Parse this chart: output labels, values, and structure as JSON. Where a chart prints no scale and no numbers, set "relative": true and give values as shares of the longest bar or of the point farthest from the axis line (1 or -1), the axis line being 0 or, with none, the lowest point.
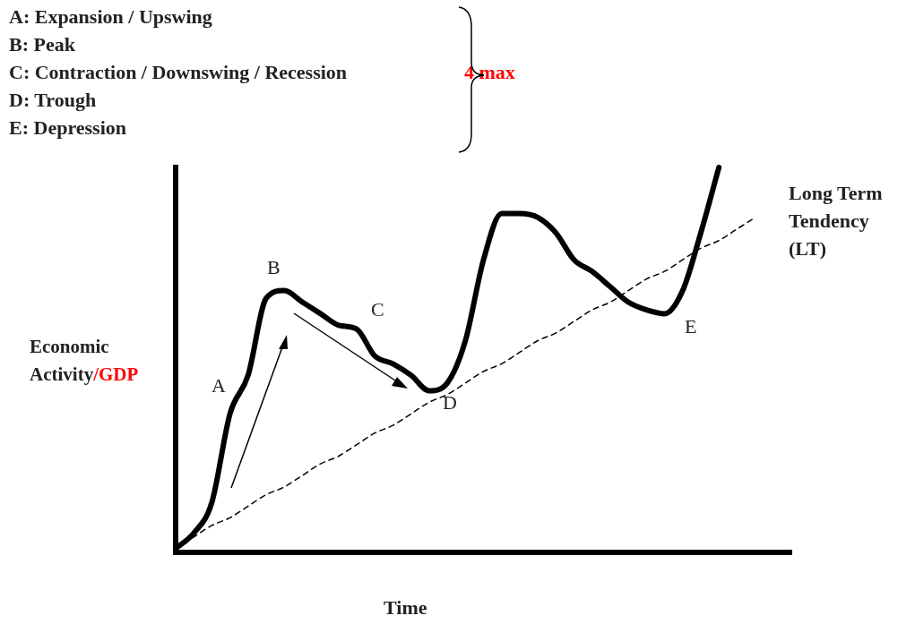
{
  "chart_data": {
    "type": "line",
    "relative": true,
    "xlabel": "Time",
    "ylabel": "Economic Activity/GDP",
    "marker": "none",
    "legend": false,
    "grid": false,
    "categories": [
      null,
      null,
      null,
      null,
      null,
      null,
      null,
      null,
      null,
      null,
      null,
      null,
      null,
      null,
      null,
      null,
      null,
      null,
      null,
      null,
      null,
      null,
      null,
      null,
      null,
      null,
      null,
      null,
      null,
      null,
      null,
      null,
      null,
      null,
      null
    ],
    "series": [
      {
        "color": "#000000",
        "line_style": "solid",
        "values": [
          0.01,
          0.05,
          0.13,
          0.36,
          0.46,
          0.66,
          0.68,
          0.65,
          0.62,
          0.59,
          0.58,
          0.51,
          0.49,
          0.46,
          0.42,
          0.44,
          0.55,
          0.76,
          0.88,
          0.88,
          0.87,
          0.83,
          0.76,
          0.73,
          0.69,
          0.65,
          0.63,
          0.62,
          0.68,
          0.83,
          1,
          null,
          null,
          null,
          null
        ]
      },
      {
        "name": "Long Term Tendency (LT)",
        "color": "#000000",
        "line_style": "dashed",
        "values": [
          0.01,
          0.04,
          0.07,
          0.09,
          0.12,
          0.15,
          0.17,
          0.2,
          0.23,
          0.25,
          0.28,
          0.31,
          0.33,
          0.36,
          0.39,
          0.41,
          0.44,
          0.47,
          0.49,
          0.52,
          0.55,
          0.57,
          0.6,
          0.63,
          0.65,
          0.68,
          0.71,
          0.73,
          0.76,
          0.79,
          0.81,
          0.84,
          0.87,
          null,
          null
        ]
      }
    ],
    "annotations": [
      "A: Expansion / Upswing",
      "B: Peak",
      "C: Contraction / Downswing / Recession",
      "D: Trough",
      "E: Depression",
      "4 max",
      "A",
      "B",
      "C",
      "D",
      "E"
    ]
  }
}
